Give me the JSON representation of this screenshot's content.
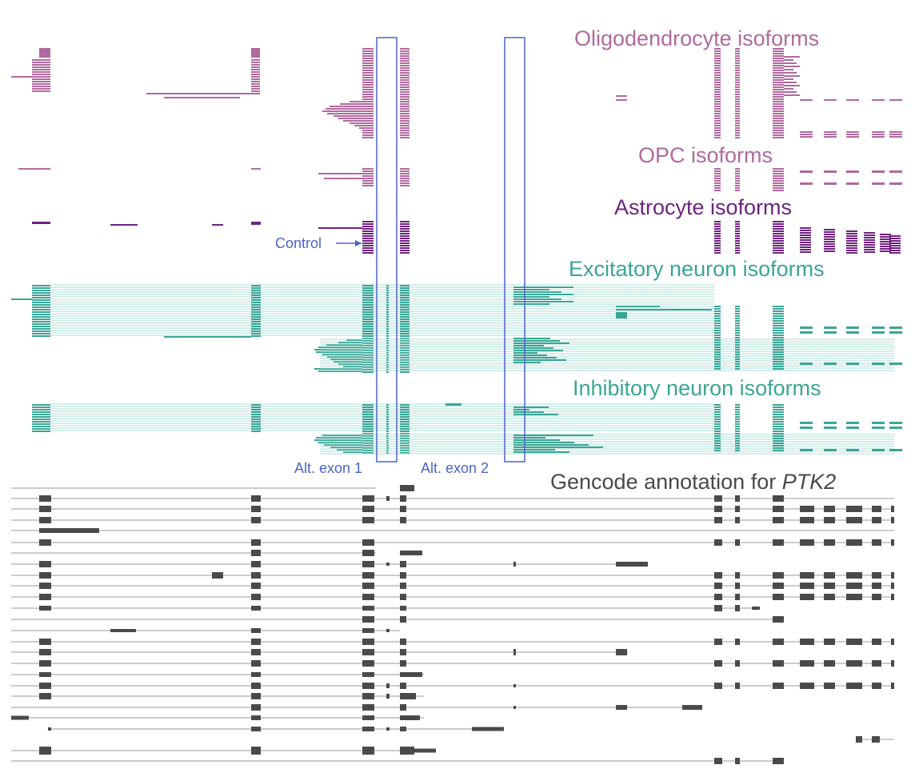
{
  "colors": {
    "oligodendrocyte": "#b06a9e",
    "opc": "#b06a9e",
    "astrocyte": "#6e237f",
    "excitatory": "#3aa595",
    "inhibitory": "#3aa595",
    "gencode": "#4a4a4a",
    "annotation": "#4a63c9"
  },
  "labels": {
    "oligodendrocyte": "Oligodendrocyte isoforms",
    "opc": "OPC isoforms",
    "astrocyte": "Astrocyte isoforms",
    "excitatory": "Excitatory neuron isoforms",
    "inhibitory": "Inhibitory neuron isoforms",
    "gencode_prefix": "Gencode annotation for ",
    "gencode_gene": "PTK2",
    "alt_exon_1": "Alt. exon 1",
    "alt_exon_2": "Alt. exon 2",
    "control": "Control"
  }
}
